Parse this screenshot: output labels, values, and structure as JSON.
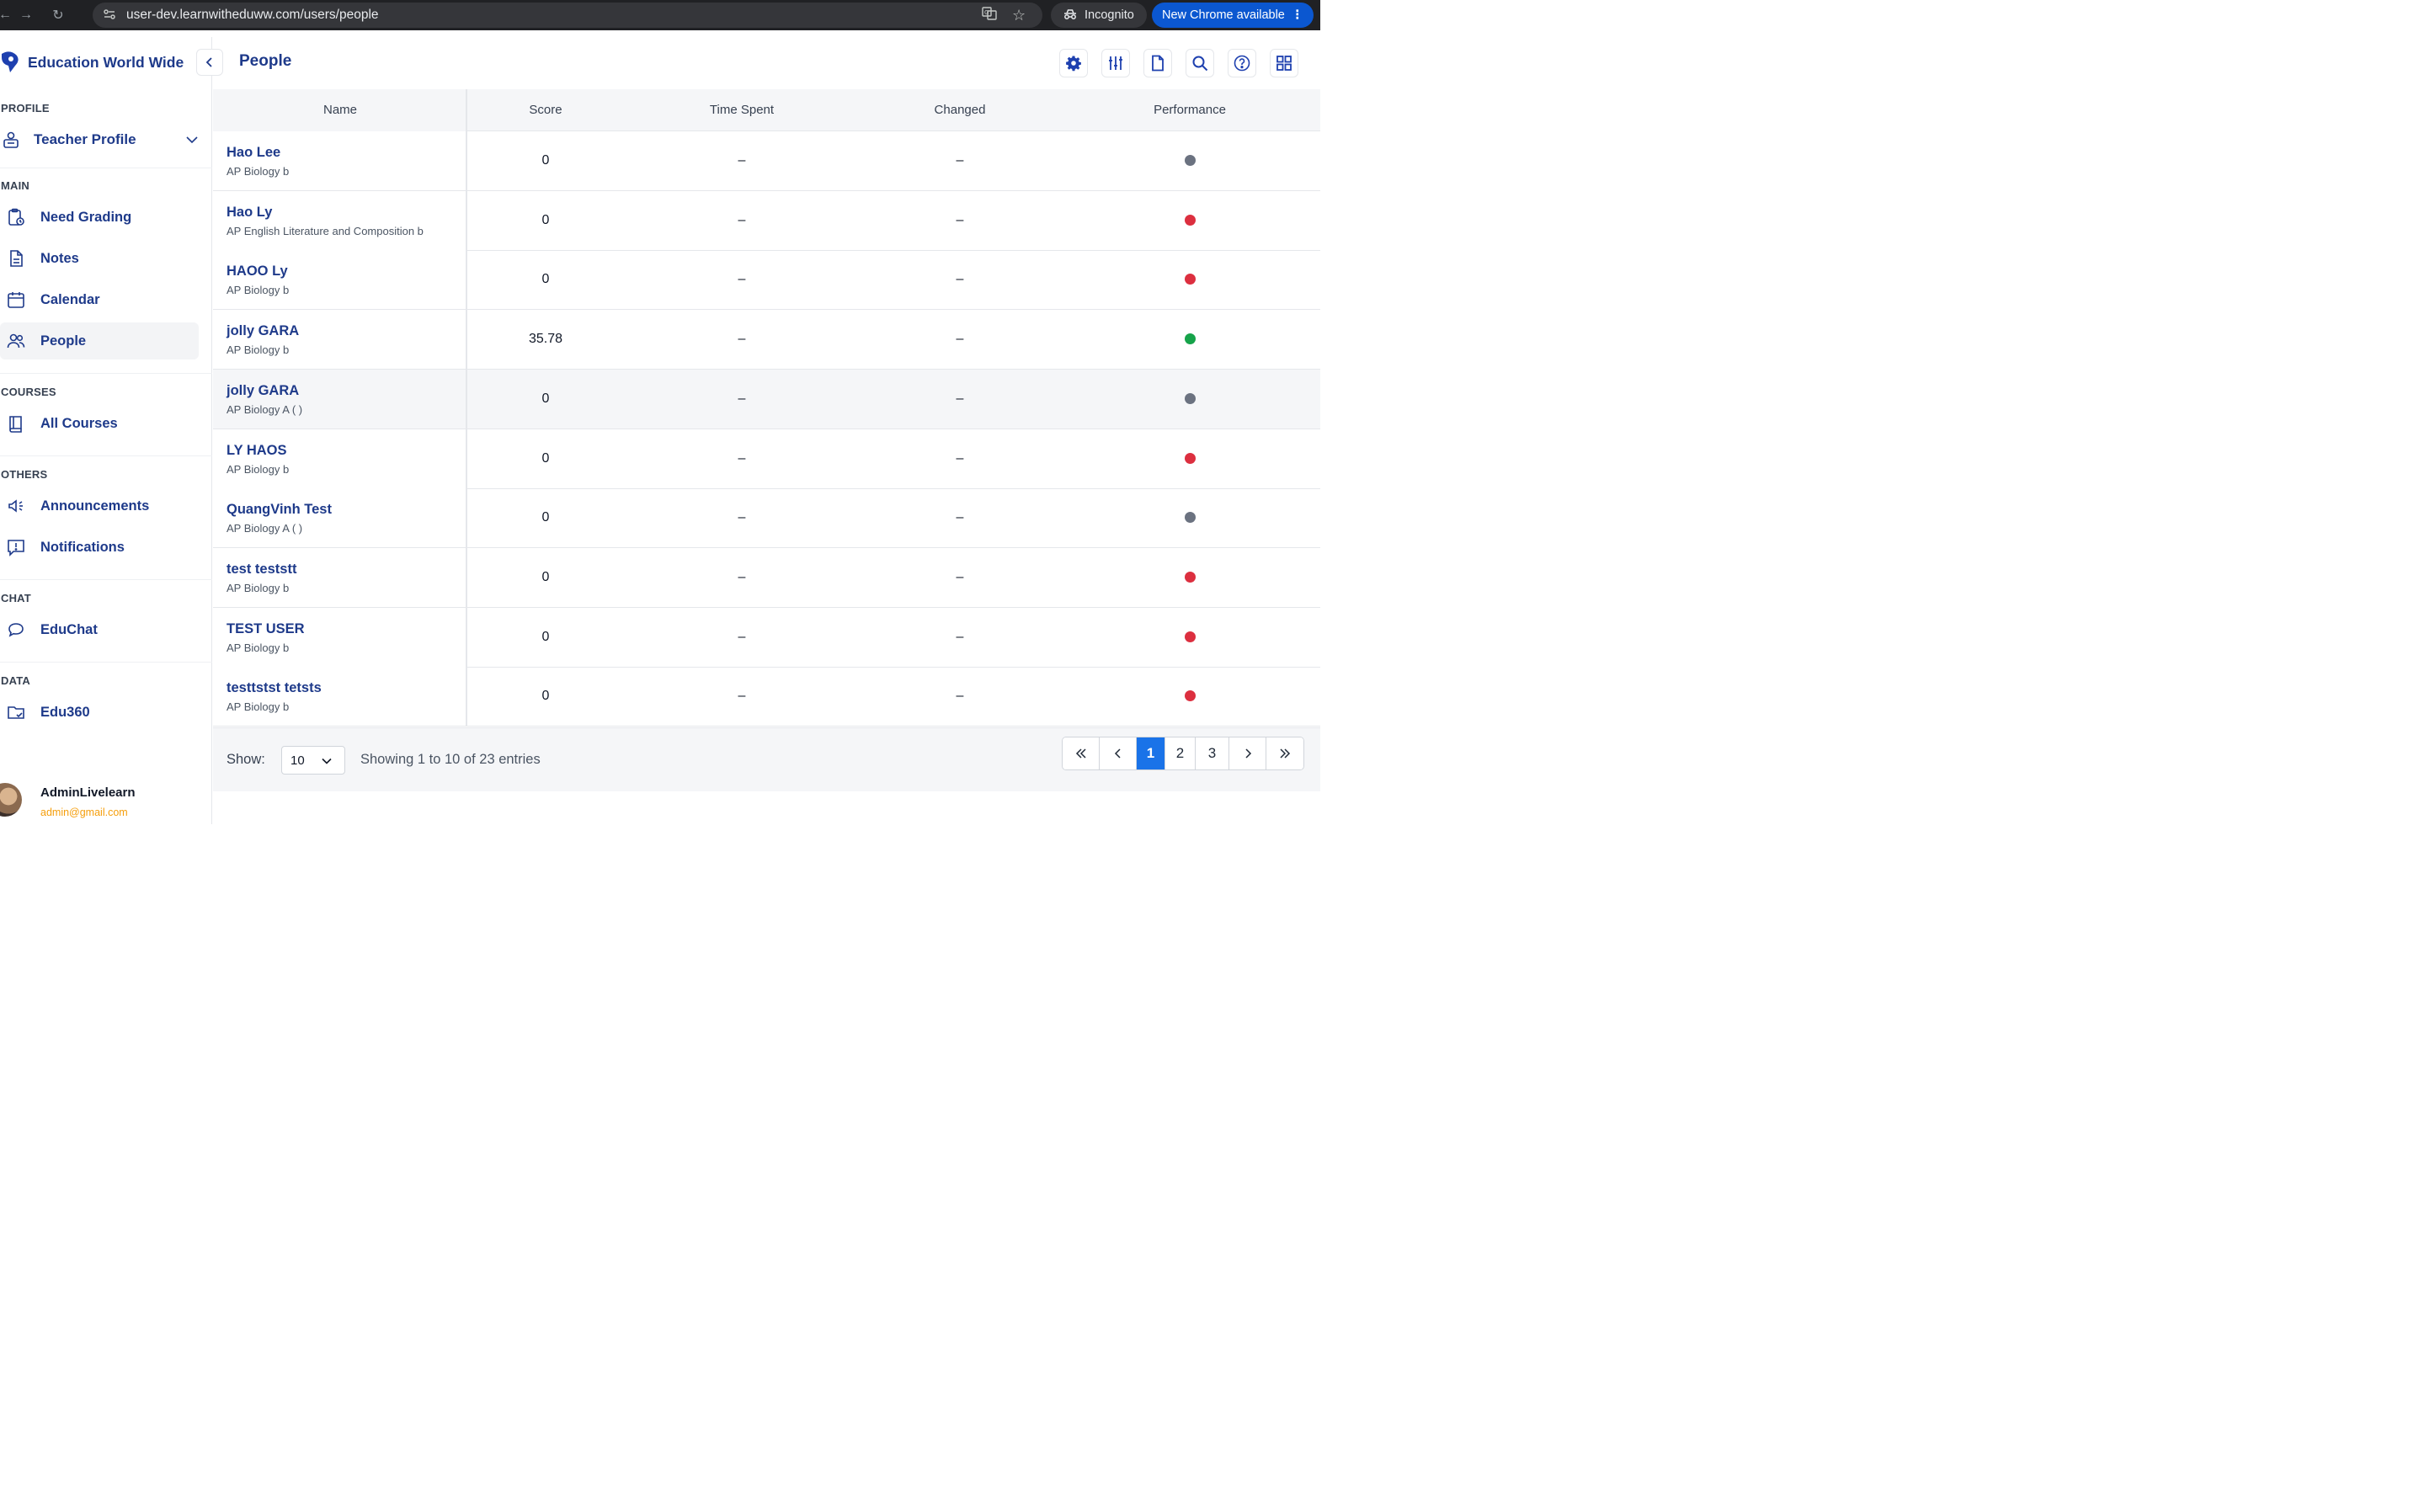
{
  "browser": {
    "url": "user-dev.learnwitheduww.com/users/people",
    "incognito_label": "Incognito",
    "update_label": "New Chrome available"
  },
  "brand": {
    "name": "Education World Wide"
  },
  "sidebar": {
    "profile_section": "PROFILE",
    "profile_item": "Teacher Profile",
    "main_section": "MAIN",
    "main_items": [
      {
        "label": "Need Grading",
        "icon": "clipboard-clock-icon"
      },
      {
        "label": "Notes",
        "icon": "document-icon"
      },
      {
        "label": "Calendar",
        "icon": "calendar-icon"
      },
      {
        "label": "People",
        "icon": "people-icon",
        "active": true
      }
    ],
    "courses_section": "COURSES",
    "courses_items": [
      {
        "label": "All Courses",
        "icon": "book-icon"
      }
    ],
    "others_section": "OTHERS",
    "others_items": [
      {
        "label": "Announcements",
        "icon": "megaphone-icon"
      },
      {
        "label": "Notifications",
        "icon": "alert-message-icon"
      }
    ],
    "chat_section": "CHAT",
    "chat_items": [
      {
        "label": "EduChat",
        "icon": "chat-bubble-icon"
      }
    ],
    "data_section": "DATA",
    "data_items": [
      {
        "label": "Edu360",
        "icon": "folder-check-icon"
      }
    ],
    "user": {
      "name": "AdminLivelearn",
      "email": "admin@gmail.com"
    }
  },
  "header": {
    "title": "People"
  },
  "table": {
    "columns": [
      "Name",
      "Score",
      "Time Spent",
      "Changed",
      "Performance"
    ],
    "rows": [
      {
        "name": "Hao Lee",
        "course": "AP Biology b",
        "score": "0",
        "time_spent": "–",
        "changed": "–",
        "performance": "gray"
      },
      {
        "name": "Hao Ly",
        "course": "AP English Literature and Composition b",
        "score": "0",
        "time_spent": "–",
        "changed": "–",
        "performance": "red"
      },
      {
        "name": "HAOO Ly",
        "course": "AP Biology b",
        "score": "0",
        "time_spent": "–",
        "changed": "–",
        "performance": "red"
      },
      {
        "name": "jolly GARA",
        "course": "AP Biology b",
        "score": "35.78",
        "time_spent": "–",
        "changed": "–",
        "performance": "green"
      },
      {
        "name": "jolly GARA",
        "course": "AP Biology A ( )",
        "score": "0",
        "time_spent": "–",
        "changed": "–",
        "performance": "gray"
      },
      {
        "name": "LY HAOS",
        "course": "AP Biology b",
        "score": "0",
        "time_spent": "–",
        "changed": "–",
        "performance": "red"
      },
      {
        "name": "QuangVinh Test",
        "course": "AP Biology A ( )",
        "score": "0",
        "time_spent": "–",
        "changed": "–",
        "performance": "gray"
      },
      {
        "name": "test teststt",
        "course": "AP Biology b",
        "score": "0",
        "time_spent": "–",
        "changed": "–",
        "performance": "red"
      },
      {
        "name": "TEST USER",
        "course": "AP Biology b",
        "score": "0",
        "time_spent": "–",
        "changed": "–",
        "performance": "red"
      },
      {
        "name": "testtstst tetsts",
        "course": "AP Biology b",
        "score": "0",
        "time_spent": "–",
        "changed": "–",
        "performance": "red"
      }
    ]
  },
  "performance_colors": {
    "gray": "#6b7280",
    "red": "#dc2f3f",
    "green": "#16a34a"
  },
  "footer": {
    "show_label": "Show:",
    "page_size": "10",
    "entries_text": "Showing 1 to 10 of 23 entries",
    "pages": [
      "1",
      "2",
      "3"
    ],
    "current_page": "1"
  }
}
